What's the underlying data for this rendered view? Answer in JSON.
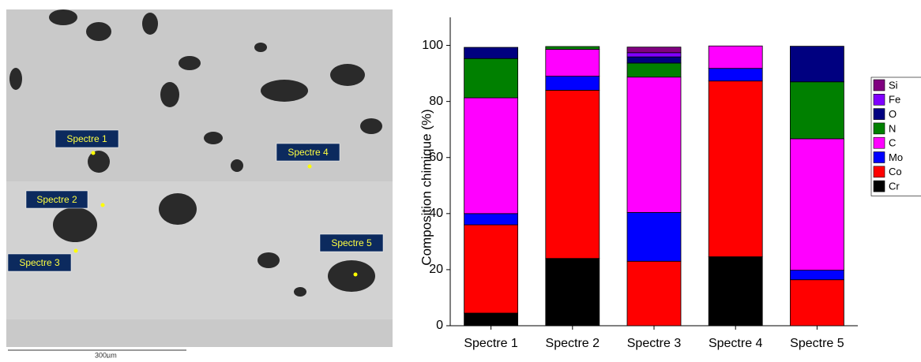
{
  "micrograph": {
    "labels": [
      "Spectre 1",
      "Spectre 2",
      "Spectre 3",
      "Spectre 4",
      "Spectre 5"
    ],
    "scale_bar": "300µm"
  },
  "chart_data": {
    "type": "stacked-bar",
    "ylabel": "Composition chimique (%)",
    "categories": [
      "Spectre 1",
      "Spectre 2",
      "Spectre 3",
      "Spectre 4",
      "Spectre 5"
    ],
    "series": [
      {
        "name": "Cr",
        "color": "#000000",
        "values": [
          4.5,
          24,
          0,
          24.6,
          0
        ]
      },
      {
        "name": "Co",
        "color": "#ff0000",
        "values": [
          31.5,
          60,
          23,
          62.7,
          16.4
        ]
      },
      {
        "name": "Mo",
        "color": "#0000ff",
        "values": [
          4,
          5,
          17.4,
          4.5,
          3.4
        ]
      },
      {
        "name": "C",
        "color": "#ff00ff",
        "values": [
          41.3,
          9.6,
          48.3,
          8,
          46.9
        ]
      },
      {
        "name": "N",
        "color": "#008000",
        "values": [
          14,
          1,
          5,
          0,
          20.3
        ]
      },
      {
        "name": "O",
        "color": "#000080",
        "values": [
          4,
          0,
          2.2,
          0,
          12.7
        ]
      },
      {
        "name": "Fe",
        "color": "#8000ff",
        "values": [
          0,
          0,
          1.5,
          0,
          0
        ]
      },
      {
        "name": "Si",
        "color": "#800080",
        "values": [
          0,
          0,
          2,
          0,
          0
        ]
      }
    ],
    "ylim": [
      0,
      110
    ],
    "yticks": [
      0,
      20,
      40,
      60,
      80,
      100
    ],
    "legend": "right"
  }
}
